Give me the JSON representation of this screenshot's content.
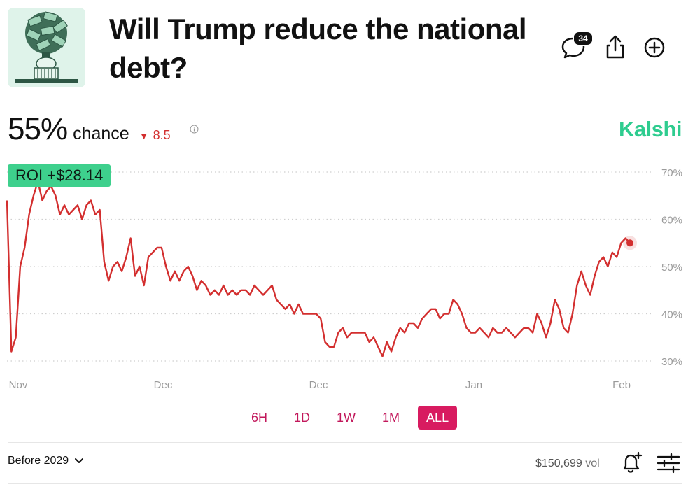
{
  "header": {
    "title": "Will Trump reduce the national debt?",
    "comment_count": "34"
  },
  "stats": {
    "percent": "55%",
    "chance_label": "chance",
    "delta": "8.5",
    "delta_direction": "down",
    "brand": "Kalshi"
  },
  "roi": {
    "label": "ROI +$28.14"
  },
  "range_tabs": [
    {
      "label": "6H",
      "active": false
    },
    {
      "label": "1D",
      "active": false
    },
    {
      "label": "1W",
      "active": false
    },
    {
      "label": "1M",
      "active": false
    },
    {
      "label": "ALL",
      "active": true
    }
  ],
  "footer": {
    "filter_label": "Before 2029",
    "volume": "$150,699",
    "volume_unit": "vol"
  },
  "colors": {
    "line": "#d32f2f",
    "brand": "#2ecc8f",
    "roi_bg": "#3ed08d",
    "tab_active": "#d81b60"
  },
  "chart_data": {
    "type": "line",
    "y_ticks": [
      "70%",
      "60%",
      "50%",
      "40%",
      "30%"
    ],
    "y_tick_values": [
      70,
      60,
      50,
      40,
      30
    ],
    "x_ticks": [
      "Nov",
      "Dec",
      "Dec",
      "Jan",
      "Feb"
    ],
    "ylim": [
      28,
      72
    ],
    "grid": true,
    "series": [
      {
        "values": [
          64,
          32,
          35,
          50,
          54,
          61,
          65,
          68,
          64,
          66,
          67,
          65,
          61,
          63,
          61,
          62,
          63,
          60,
          63,
          64,
          61,
          62,
          51,
          47,
          50,
          51,
          49,
          52,
          56,
          48,
          50,
          46,
          52,
          53,
          54,
          54,
          50,
          47,
          49,
          47,
          49,
          50,
          48,
          45,
          47,
          46,
          44,
          45,
          44,
          46,
          44,
          45,
          44,
          45,
          45,
          44,
          46,
          45,
          44,
          45,
          46,
          43,
          42,
          41,
          42,
          40,
          42,
          40,
          40,
          40,
          40,
          39,
          34,
          33,
          33,
          36,
          37,
          35,
          36,
          36,
          36,
          36,
          34,
          35,
          33,
          31,
          34,
          32,
          35,
          37,
          36,
          38,
          38,
          37,
          39,
          40,
          41,
          41,
          39,
          40,
          40,
          43,
          42,
          40,
          37,
          36,
          36,
          37,
          36,
          35,
          37,
          36,
          36,
          37,
          36,
          35,
          36,
          37,
          37,
          36,
          40,
          38,
          35,
          38,
          43,
          41,
          37,
          36,
          40,
          46,
          49,
          46,
          44,
          48,
          51,
          52,
          50,
          53,
          52,
          55,
          56,
          55
        ]
      }
    ]
  }
}
